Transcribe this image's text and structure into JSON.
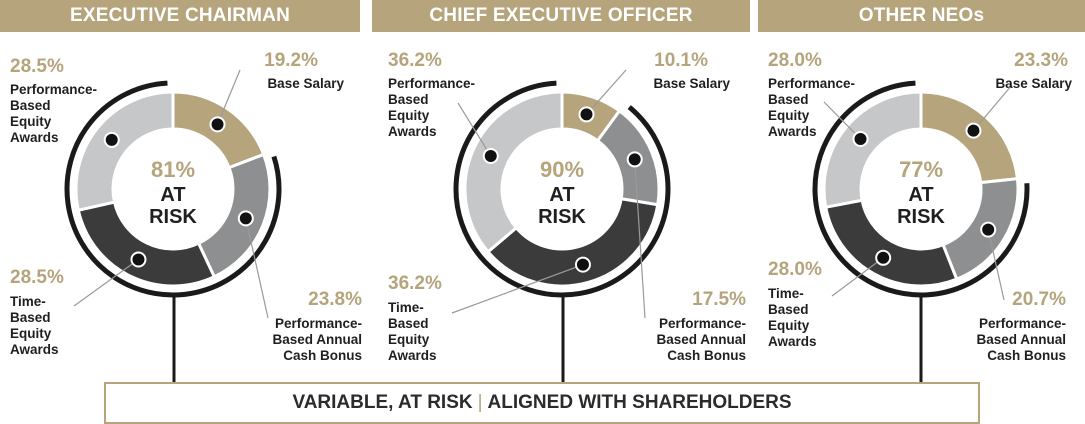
{
  "colors": {
    "header_bg": "#b5a47c",
    "accent": "#b5a47c",
    "base_salary": "#b5a47c",
    "annual_bonus": "#8e8f91",
    "time_equity": "#3b3b3c",
    "perf_equity": "#c6c7c9",
    "text_dark": "#1f1f1f",
    "arc": "#1a1a1a"
  },
  "footer": {
    "left": "VARIABLE, AT RISK",
    "separator": "|",
    "right": "ALIGNED WITH SHAREHOLDERS"
  },
  "chart_data": [
    {
      "type": "pie",
      "title": "EXECUTIVE CHAIRMAN",
      "center_value": "81%",
      "center_label_1": "AT",
      "center_label_2": "RISK",
      "slices": [
        {
          "pct": "19.2%",
          "value": 19.2,
          "label": [
            "Base Salary"
          ],
          "color_key": "base_salary"
        },
        {
          "pct": "23.8%",
          "value": 23.8,
          "label": [
            "Performance-",
            "Based Annual",
            "Cash Bonus"
          ],
          "color_key": "annual_bonus"
        },
        {
          "pct": "28.5%",
          "value": 28.5,
          "label": [
            "Time-",
            "Based",
            "Equity",
            "Awards"
          ],
          "color_key": "time_equity"
        },
        {
          "pct": "28.5%",
          "value": 28.5,
          "label": [
            "Performance-",
            "Based",
            "Equity",
            "Awards"
          ],
          "color_key": "perf_equity"
        }
      ]
    },
    {
      "type": "pie",
      "title": "CHIEF EXECUTIVE OFFICER",
      "center_value": "90%",
      "center_label_1": "AT",
      "center_label_2": "RISK",
      "slices": [
        {
          "pct": "10.1%",
          "value": 10.1,
          "label": [
            "Base Salary"
          ],
          "color_key": "base_salary"
        },
        {
          "pct": "17.5%",
          "value": 17.5,
          "label": [
            "Performance-",
            "Based Annual",
            "Cash Bonus"
          ],
          "color_key": "annual_bonus"
        },
        {
          "pct": "36.2%",
          "value": 36.2,
          "label": [
            "Time-",
            "Based",
            "Equity",
            "Awards"
          ],
          "color_key": "time_equity"
        },
        {
          "pct": "36.2%",
          "value": 36.2,
          "label": [
            "Performance-",
            "Based",
            "Equity",
            "Awards"
          ],
          "color_key": "perf_equity"
        }
      ]
    },
    {
      "type": "pie",
      "title": "OTHER NEOs",
      "center_value": "77%",
      "center_label_1": "AT",
      "center_label_2": "RISK",
      "slices": [
        {
          "pct": "23.3%",
          "value": 23.3,
          "label": [
            "Base Salary"
          ],
          "color_key": "base_salary"
        },
        {
          "pct": "20.7%",
          "value": 20.7,
          "label": [
            "Performance-",
            "Based Annual",
            "Cash Bonus"
          ],
          "color_key": "annual_bonus"
        },
        {
          "pct": "28.0%",
          "value": 28.0,
          "label": [
            "Time-",
            "Based",
            "Equity",
            "Awards"
          ],
          "color_key": "time_equity"
        },
        {
          "pct": "28.0%",
          "value": 28.0,
          "label": [
            "Performance-",
            "Based",
            "Equity",
            "Awards"
          ],
          "color_key": "perf_equity"
        }
      ]
    }
  ]
}
